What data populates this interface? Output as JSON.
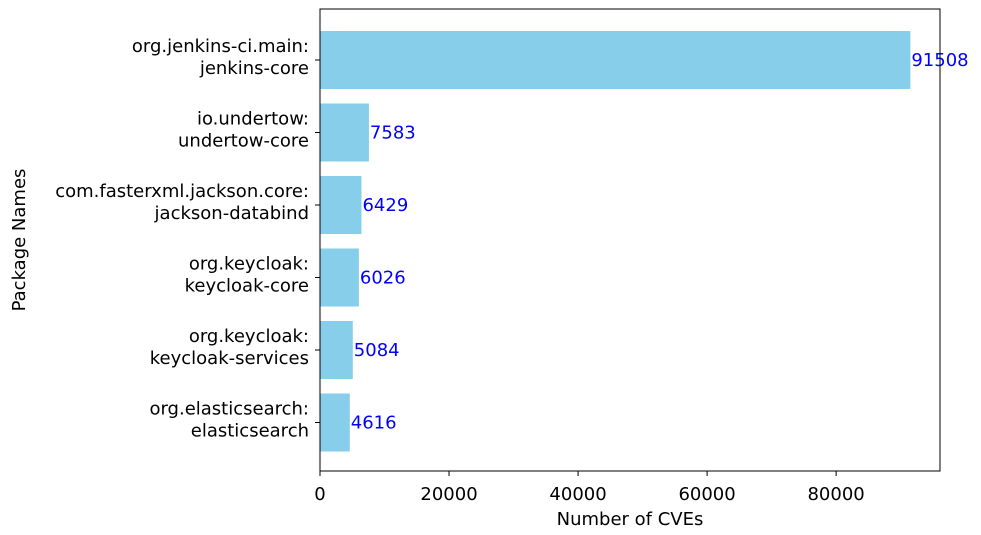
{
  "chart_data": {
    "type": "bar",
    "orientation": "horizontal",
    "categories": [
      [
        "org.jenkins-ci.main:",
        "jenkins-core"
      ],
      [
        "io.undertow:",
        "undertow-core"
      ],
      [
        "com.fasterxml.jackson.core:",
        "jackson-databind"
      ],
      [
        "org.keycloak:",
        "keycloak-core"
      ],
      [
        "org.keycloak:",
        "keycloak-services"
      ],
      [
        "org.elasticsearch:",
        "elasticsearch"
      ]
    ],
    "values": [
      91508,
      7583,
      6429,
      6026,
      5084,
      4616
    ],
    "data_labels": [
      "91508",
      "7583",
      "6429",
      "6026",
      "5084",
      "4616"
    ],
    "xlabel": "Number of CVEs",
    "ylabel": "Package Names",
    "xlim": [
      0,
      96100
    ],
    "xticks": [
      0,
      20000,
      40000,
      60000,
      80000
    ],
    "xtick_labels": [
      "0",
      "20000",
      "40000",
      "60000",
      "80000"
    ],
    "grid": false,
    "bar_color": "#87CEEB",
    "label_color": "#0000FF"
  }
}
